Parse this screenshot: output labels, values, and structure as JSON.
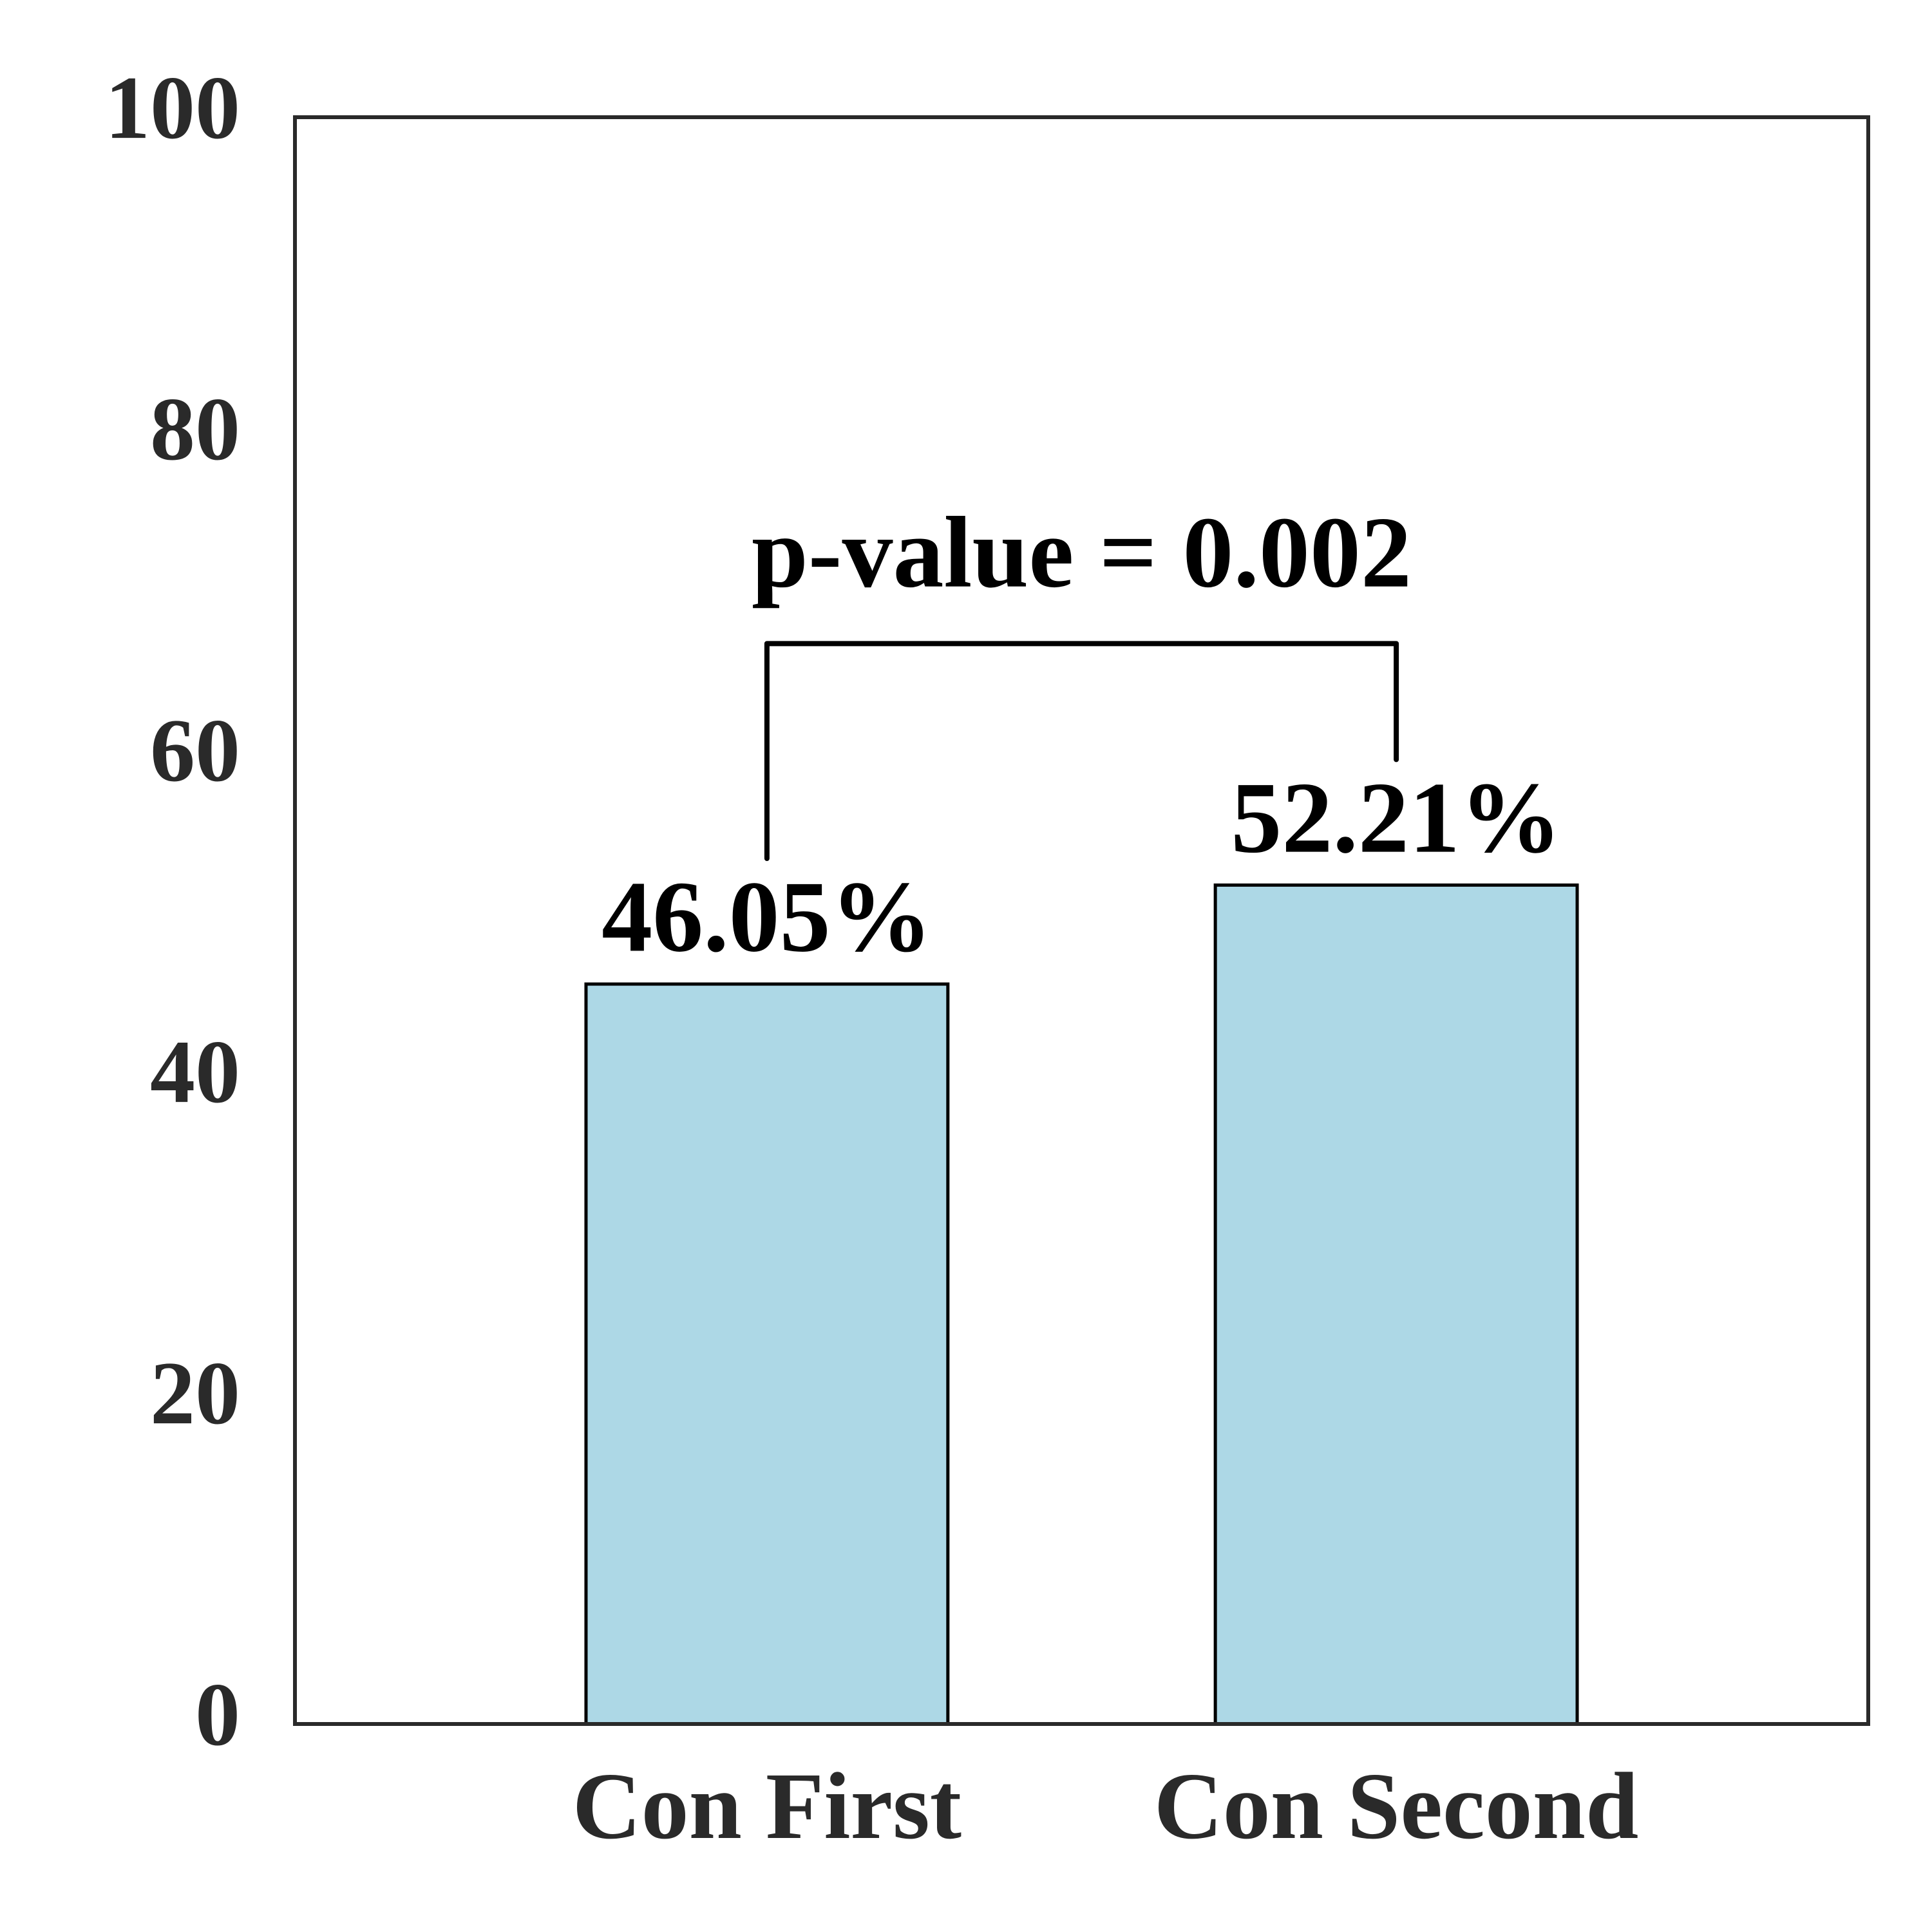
{
  "chart_data": {
    "type": "bar",
    "categories": [
      "Con First",
      "Con Second"
    ],
    "values": [
      46.05,
      52.21
    ],
    "value_labels": [
      "46.05%",
      "52.21%"
    ],
    "color": "#add8e6",
    "ylim": [
      0,
      100
    ],
    "yticks": [
      0,
      20,
      40,
      60,
      80,
      100
    ],
    "grid": false,
    "annotation": "p-value = 0.002"
  }
}
